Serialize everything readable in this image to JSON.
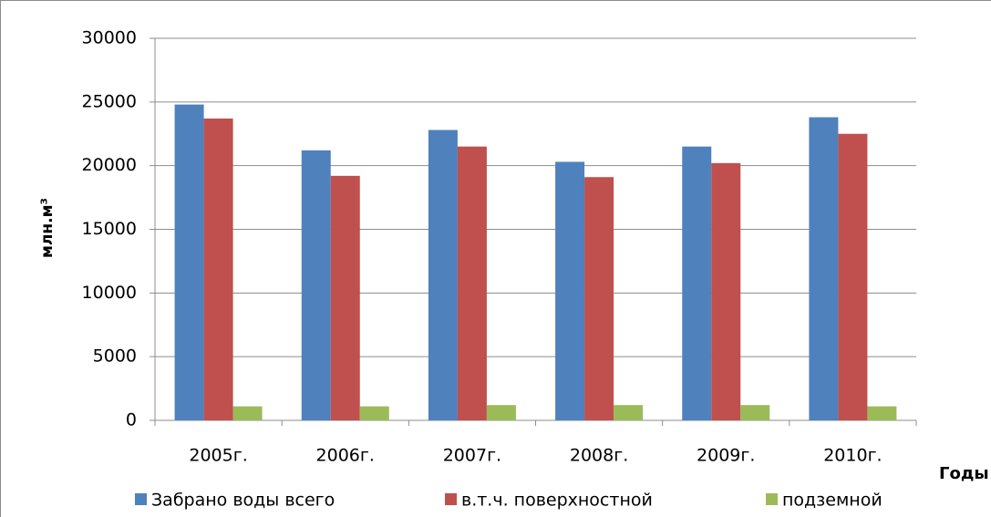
{
  "chart_data": {
    "type": "bar",
    "ylabel": "млн.м³",
    "xlabel": "Годы",
    "categories": [
      "2005г.",
      "2006г.",
      "2007г.",
      "2008г.",
      "2009г.",
      "2010г."
    ],
    "series": [
      {
        "name": "Забрано воды всего",
        "color": "#4f81bd",
        "values": [
          24800,
          21200,
          22800,
          20300,
          21500,
          23800
        ]
      },
      {
        "name": "в.т.ч. поверхностной",
        "color": "#c0504d",
        "values": [
          23700,
          19200,
          21500,
          19100,
          20200,
          22500
        ]
      },
      {
        "name": "подземной",
        "color": "#9bbb59",
        "values": [
          1100,
          1100,
          1200,
          1200,
          1200,
          1100
        ]
      }
    ],
    "ylim": [
      0,
      30000
    ],
    "yticks": [
      0,
      5000,
      10000,
      15000,
      20000,
      25000,
      30000
    ],
    "grid": true,
    "legend": "bottom"
  }
}
